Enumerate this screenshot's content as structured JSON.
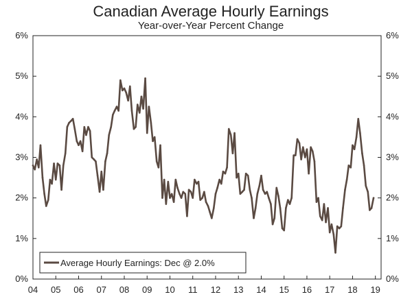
{
  "chart_data": {
    "type": "line",
    "title": "Canadian Average Hourly Earnings",
    "subtitle": "Year-over-Year Percent Change",
    "xlabel": "",
    "ylabel": "",
    "x_ticks": [
      "04",
      "05",
      "06",
      "07",
      "08",
      "09",
      "10",
      "11",
      "12",
      "13",
      "14",
      "15",
      "16",
      "17",
      "18",
      "19"
    ],
    "x_range": [
      2004.0,
      2019.25
    ],
    "y_ticks": [
      "0%",
      "1%",
      "2%",
      "3%",
      "4%",
      "5%",
      "6%"
    ],
    "ylim": [
      0,
      6
    ],
    "grid": false,
    "legend_position": "bottom-left",
    "series": [
      {
        "name": "Average Hourly Earnings: Dec @ 2.0%",
        "color": "#5a4a42",
        "x": [
          2004.0,
          2004.08,
          2004.17,
          2004.25,
          2004.33,
          2004.42,
          2004.5,
          2004.58,
          2004.67,
          2004.75,
          2004.83,
          2004.92,
          2005.0,
          2005.08,
          2005.17,
          2005.25,
          2005.33,
          2005.42,
          2005.5,
          2005.58,
          2005.67,
          2005.75,
          2005.83,
          2005.92,
          2006.0,
          2006.08,
          2006.17,
          2006.25,
          2006.33,
          2006.42,
          2006.5,
          2006.58,
          2006.67,
          2006.75,
          2006.83,
          2006.92,
          2007.0,
          2007.08,
          2007.17,
          2007.25,
          2007.33,
          2007.42,
          2007.5,
          2007.58,
          2007.67,
          2007.75,
          2007.83,
          2007.92,
          2008.0,
          2008.08,
          2008.17,
          2008.25,
          2008.33,
          2008.42,
          2008.5,
          2008.58,
          2008.67,
          2008.75,
          2008.83,
          2008.92,
          2009.0,
          2009.08,
          2009.17,
          2009.25,
          2009.33,
          2009.42,
          2009.5,
          2009.58,
          2009.67,
          2009.75,
          2009.83,
          2009.92,
          2010.0,
          2010.08,
          2010.17,
          2010.25,
          2010.33,
          2010.42,
          2010.5,
          2010.58,
          2010.67,
          2010.75,
          2010.83,
          2010.92,
          2011.0,
          2011.08,
          2011.17,
          2011.25,
          2011.33,
          2011.42,
          2011.5,
          2011.58,
          2011.67,
          2011.75,
          2011.83,
          2011.92,
          2012.0,
          2012.08,
          2012.17,
          2012.25,
          2012.33,
          2012.42,
          2012.5,
          2012.58,
          2012.67,
          2012.75,
          2012.83,
          2012.92,
          2013.0,
          2013.08,
          2013.17,
          2013.25,
          2013.33,
          2013.42,
          2013.5,
          2013.58,
          2013.67,
          2013.75,
          2013.83,
          2013.92,
          2014.0,
          2014.08,
          2014.17,
          2014.25,
          2014.33,
          2014.42,
          2014.5,
          2014.58,
          2014.67,
          2014.75,
          2014.83,
          2014.92,
          2015.0,
          2015.08,
          2015.17,
          2015.25,
          2015.33,
          2015.42,
          2015.5,
          2015.58,
          2015.67,
          2015.75,
          2015.83,
          2015.92,
          2016.0,
          2016.08,
          2016.17,
          2016.25,
          2016.33,
          2016.42,
          2016.5,
          2016.58,
          2016.67,
          2016.75,
          2016.83,
          2016.92,
          2017.0,
          2017.08,
          2017.17,
          2017.25,
          2017.33,
          2017.42,
          2017.5,
          2017.58,
          2017.67,
          2017.75,
          2017.83,
          2017.92,
          2018.0,
          2018.08,
          2018.17,
          2018.25,
          2018.33,
          2018.42,
          2018.5,
          2018.58,
          2018.67,
          2018.75,
          2018.83,
          2018.92
        ],
        "values": [
          2.8,
          2.7,
          2.95,
          2.75,
          3.3,
          2.5,
          2.1,
          1.8,
          1.95,
          2.45,
          2.35,
          2.85,
          2.45,
          2.85,
          2.8,
          2.2,
          2.8,
          3.1,
          3.75,
          3.85,
          3.9,
          3.95,
          3.7,
          3.4,
          3.3,
          3.4,
          3.15,
          3.75,
          3.55,
          3.75,
          3.65,
          3.0,
          2.95,
          2.9,
          2.55,
          2.15,
          2.65,
          2.2,
          2.9,
          3.1,
          3.55,
          3.75,
          4.05,
          4.15,
          4.25,
          4.15,
          4.9,
          4.65,
          4.7,
          4.6,
          4.4,
          4.75,
          4.15,
          3.7,
          3.75,
          4.3,
          4.1,
          4.5,
          4.2,
          4.95,
          3.6,
          4.25,
          3.85,
          3.4,
          3.5,
          2.9,
          2.75,
          3.3,
          2.0,
          2.45,
          1.85,
          2.4,
          2.0,
          2.1,
          1.9,
          2.45,
          2.25,
          2.1,
          2.0,
          2.15,
          2.1,
          1.55,
          2.2,
          2.15,
          2.0,
          2.45,
          2.35,
          2.4,
          1.95,
          2.0,
          2.15,
          1.9,
          1.8,
          1.65,
          1.5,
          1.75,
          2.1,
          2.25,
          2.45,
          2.35,
          2.65,
          2.6,
          2.75,
          3.7,
          3.55,
          3.1,
          3.6,
          2.5,
          2.6,
          2.1,
          2.15,
          2.2,
          2.6,
          2.55,
          2.2,
          2.0,
          1.5,
          1.75,
          2.1,
          2.3,
          2.55,
          2.2,
          2.1,
          2.15,
          2.0,
          1.85,
          1.35,
          1.5,
          2.25,
          2.05,
          1.75,
          1.25,
          1.2,
          1.75,
          1.95,
          1.85,
          2.0,
          3.05,
          3.05,
          3.45,
          3.35,
          2.95,
          3.25,
          3.0,
          3.2,
          2.6,
          3.25,
          3.15,
          2.9,
          1.9,
          2.0,
          1.55,
          1.45,
          1.85,
          1.4,
          1.75,
          1.15,
          1.35,
          1.1,
          0.65,
          1.3,
          1.25,
          1.3,
          1.75,
          2.2,
          2.45,
          2.8,
          2.75,
          3.3,
          3.2,
          3.5,
          3.95,
          3.6,
          3.1,
          2.8,
          2.3,
          2.15,
          1.7,
          1.75,
          2.0
        ]
      }
    ]
  }
}
